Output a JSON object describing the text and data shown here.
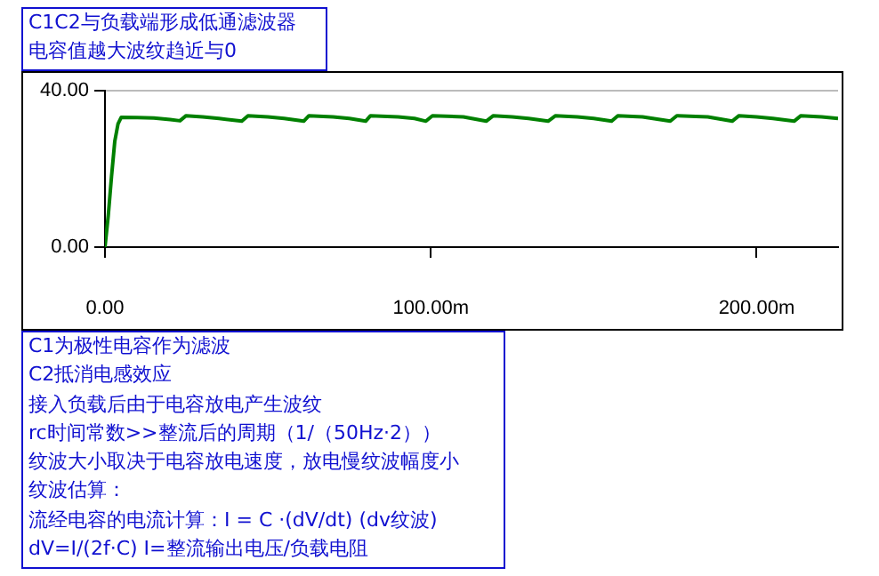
{
  "chart_data": {
    "type": "line",
    "x": [
      0,
      1,
      2,
      3,
      4,
      5,
      10,
      15,
      20,
      23,
      24.9,
      30,
      35,
      42,
      43.9,
      50,
      55,
      61,
      62.6,
      70,
      75,
      80,
      81.5,
      90,
      95,
      98.5,
      100.5,
      110,
      117,
      119.2,
      125,
      130,
      136,
      138.3,
      145,
      150,
      155.5,
      157.4,
      165,
      173.5,
      175.5,
      185,
      192.5,
      194.6,
      200,
      205,
      211.5,
      213.6,
      220,
      225
    ],
    "series": [
      {
        "color": "#008000",
        "values": [
          0,
          8,
          18,
          27,
          31.5,
          33.2,
          33.1,
          33,
          32.6,
          32.3,
          33.6,
          33.3,
          32.9,
          32.2,
          33.6,
          33.3,
          32.9,
          32.2,
          33.6,
          33.3,
          32.9,
          32.2,
          33.6,
          33.3,
          32.9,
          32.2,
          33.6,
          33.3,
          32.2,
          33.6,
          33.3,
          32.9,
          32.2,
          33.6,
          33.3,
          32.9,
          32.2,
          33.6,
          33.3,
          32.2,
          33.6,
          33.3,
          32.2,
          33.6,
          33.3,
          32.9,
          32.2,
          33.6,
          33.3,
          32.9
        ]
      }
    ],
    "xlim": [
      0,
      225
    ],
    "xticks": [
      {
        "value": 0,
        "label": "0.00"
      },
      {
        "value": 100,
        "label": "100.00m"
      },
      {
        "value": 200,
        "label": "200.00m"
      }
    ],
    "ylim": [
      0,
      40
    ],
    "yticks": [
      {
        "value": 0,
        "label": "0.00"
      },
      {
        "value": 40,
        "label": "40.00"
      }
    ],
    "grid": "y",
    "legend": false,
    "marker": "none",
    "line_style": "solid",
    "title": "C1C2与负载端形成低通滤波器",
    "subtitle": "电容值越大波纹趋近与0",
    "annotations": [
      "C1为极性电容作为滤波",
      "C2抵消电感效应",
      "接入负载后由于电容放电产生波纹",
      "rc时间常数>>整流后的周期（1/（50Hz·2））",
      "纹波大小取决于电容放电速度，放电慢纹波幅度小",
      "纹波估算：",
      "流经电容的电流计算：I = C ·(dV/dt) (dv纹波)",
      "dV=I/(2f·C) I=整流输出电压/负载电阻"
    ]
  }
}
